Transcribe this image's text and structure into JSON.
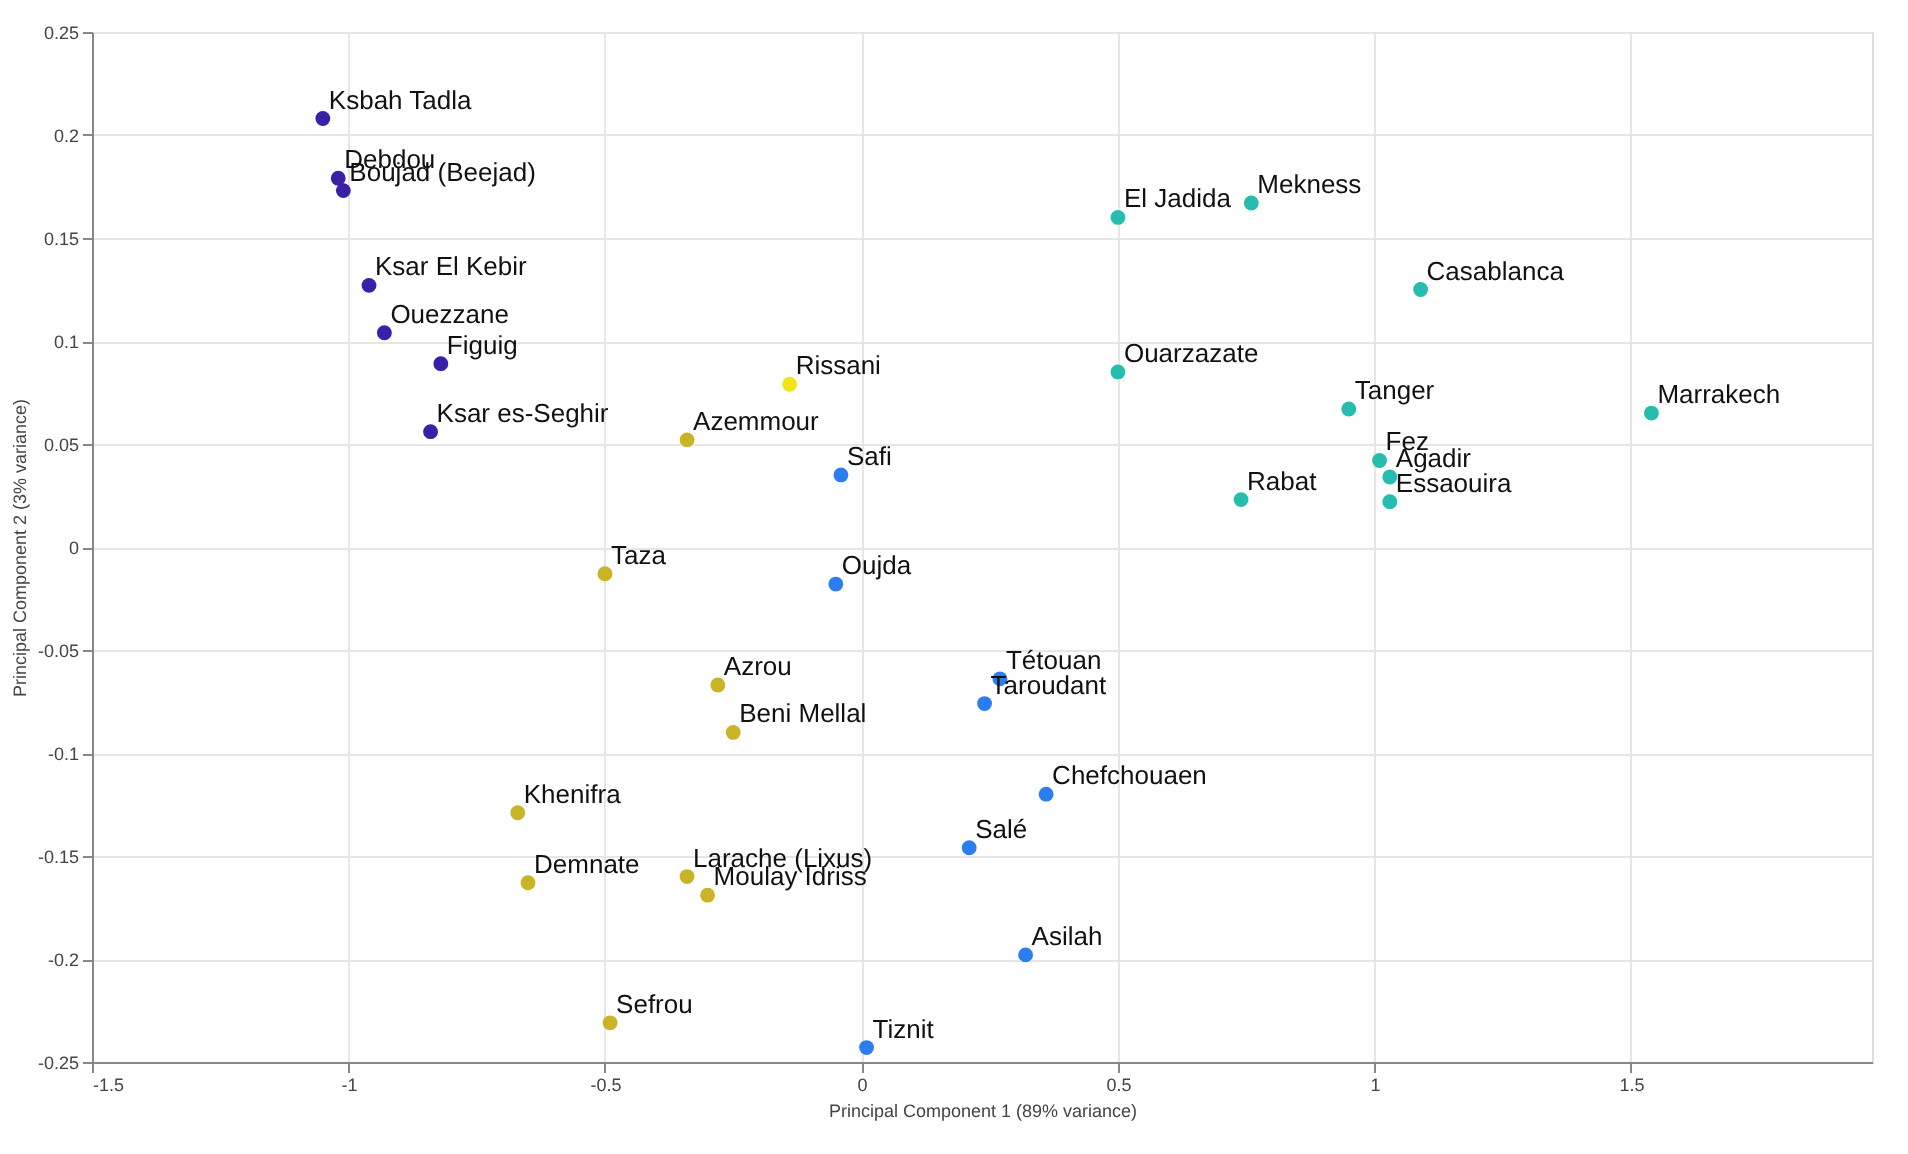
{
  "chart_data": {
    "type": "scatter",
    "xlabel": "Principal Component 1 (89% variance)",
    "ylabel": "Principal Component 2 (3% variance)",
    "xlim": [
      -1.5,
      1.97
    ],
    "xticks": [
      -1.5,
      -1,
      -0.5,
      0,
      0.5,
      1,
      1.5
    ],
    "ylim": [
      -0.25,
      0.25
    ],
    "yticks": [
      -0.25,
      -0.2,
      -0.15,
      -0.1,
      -0.05,
      0,
      0.05,
      0.1,
      0.15,
      0.2,
      0.25
    ],
    "grid": true,
    "marker": "circle",
    "series": [
      {
        "color": "#3a1fa8",
        "x": [
          -1.05,
          -1.02,
          -1.01,
          -0.96,
          -0.93,
          -0.82,
          -0.84
        ],
        "values": [
          0.208,
          0.179,
          0.173,
          0.127,
          0.104,
          0.089,
          0.056
        ]
      },
      {
        "color": "#f2e418",
        "x": [
          -0.14
        ],
        "values": [
          0.079
        ]
      },
      {
        "color": "#c9b326",
        "x": [
          -0.34,
          -0.5,
          -0.28,
          -0.25,
          -0.67,
          -0.65,
          -0.34,
          -0.3,
          -0.49
        ],
        "values": [
          0.052,
          -0.013,
          -0.067,
          -0.09,
          -0.129,
          -0.163,
          -0.16,
          -0.169,
          -0.231
        ]
      },
      {
        "color": "#2c7ef0",
        "x": [
          -0.04,
          -0.05,
          0.27,
          0.24,
          0.36,
          0.21,
          0.32,
          0.01
        ],
        "values": [
          0.035,
          -0.018,
          -0.064,
          -0.076,
          -0.12,
          -0.146,
          -0.198,
          -0.243
        ]
      },
      {
        "color": "#26bcae",
        "x": [
          0.5,
          0.76,
          1.09,
          0.5,
          0.95,
          1.54,
          1.01,
          1.03,
          1.03,
          0.74
        ],
        "values": [
          0.16,
          0.167,
          0.125,
          0.085,
          0.067,
          0.065,
          0.042,
          0.034,
          0.022,
          0.023
        ]
      }
    ],
    "annotations": [
      {
        "text": "Ksbah Tadla",
        "x": -1.05,
        "y": 0.208
      },
      {
        "text": "Debdou",
        "x": -1.02,
        "y": 0.179
      },
      {
        "text": "Boujad (Beejad)",
        "x": -1.01,
        "y": 0.173
      },
      {
        "text": "Ksar El Kebir",
        "x": -0.96,
        "y": 0.127
      },
      {
        "text": "Ouezzane",
        "x": -0.93,
        "y": 0.104
      },
      {
        "text": "Figuig",
        "x": -0.82,
        "y": 0.089
      },
      {
        "text": "Ksar es-Seghir",
        "x": -0.84,
        "y": 0.056
      },
      {
        "text": "Rissani",
        "x": -0.14,
        "y": 0.079
      },
      {
        "text": "Azemmour",
        "x": -0.34,
        "y": 0.052
      },
      {
        "text": "Taza",
        "x": -0.5,
        "y": -0.013
      },
      {
        "text": "Azrou",
        "x": -0.28,
        "y": -0.067
      },
      {
        "text": "Beni Mellal",
        "x": -0.25,
        "y": -0.09
      },
      {
        "text": "Khenifra",
        "x": -0.67,
        "y": -0.129
      },
      {
        "text": "Demnate",
        "x": -0.65,
        "y": -0.163
      },
      {
        "text": "Larache (Lixus)",
        "x": -0.34,
        "y": -0.16
      },
      {
        "text": "Moulay Idriss",
        "x": -0.3,
        "y": -0.169
      },
      {
        "text": "Sefrou",
        "x": -0.49,
        "y": -0.231
      },
      {
        "text": "Safi",
        "x": -0.04,
        "y": 0.035
      },
      {
        "text": "Oujda",
        "x": -0.05,
        "y": -0.018
      },
      {
        "text": "Tétouan",
        "x": 0.27,
        "y": -0.064
      },
      {
        "text": "Taroudant",
        "x": 0.24,
        "y": -0.076
      },
      {
        "text": "Chefchouaen",
        "x": 0.36,
        "y": -0.12
      },
      {
        "text": "Salé",
        "x": 0.21,
        "y": -0.146
      },
      {
        "text": "Asilah",
        "x": 0.32,
        "y": -0.198
      },
      {
        "text": "Tiznit",
        "x": 0.01,
        "y": -0.243
      },
      {
        "text": "El Jadida",
        "x": 0.5,
        "y": 0.16
      },
      {
        "text": "Mekness",
        "x": 0.76,
        "y": 0.167
      },
      {
        "text": "Casablanca",
        "x": 1.09,
        "y": 0.125
      },
      {
        "text": "Ouarzazate",
        "x": 0.5,
        "y": 0.085
      },
      {
        "text": "Tanger",
        "x": 0.95,
        "y": 0.067
      },
      {
        "text": "Marrakech",
        "x": 1.54,
        "y": 0.065
      },
      {
        "text": "Fez",
        "x": 1.01,
        "y": 0.042
      },
      {
        "text": "Agadir",
        "x": 1.03,
        "y": 0.034
      },
      {
        "text": "Essaouira",
        "x": 1.03,
        "y": 0.022
      },
      {
        "text": "Rabat",
        "x": 0.74,
        "y": 0.023
      }
    ]
  }
}
